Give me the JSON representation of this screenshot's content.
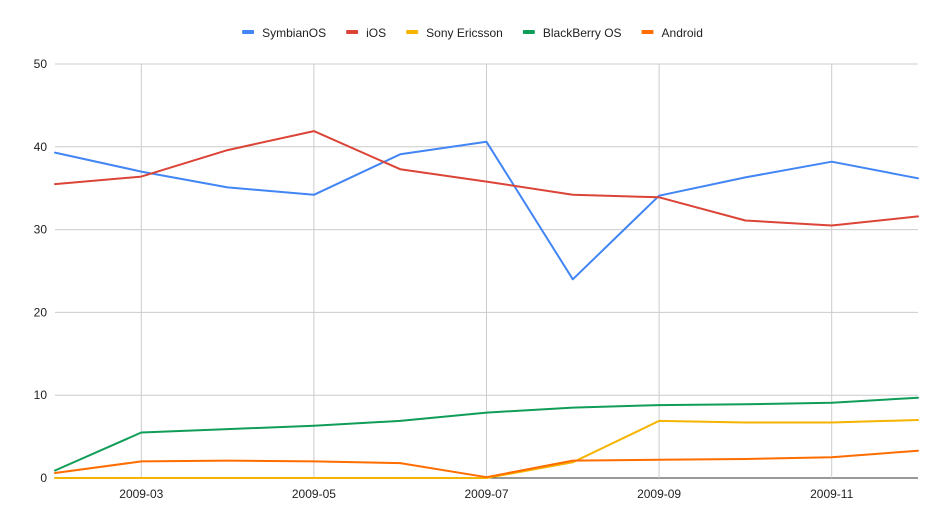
{
  "chart_data": {
    "type": "line",
    "x": [
      "2009-02",
      "2009-03",
      "2009-04",
      "2009-05",
      "2009-06",
      "2009-07",
      "2009-08",
      "2009-09",
      "2009-10",
      "2009-11",
      "2009-12"
    ],
    "x_tick_labels": [
      "2009-03",
      "2009-05",
      "2009-07",
      "2009-09",
      "2009-11"
    ],
    "ylim": [
      0,
      50
    ],
    "y_ticks": [
      0,
      10,
      20,
      30,
      40,
      50
    ],
    "grid": true,
    "legend_position": "top",
    "title": "",
    "xlabel": "",
    "ylabel": "",
    "series": [
      {
        "name": "SymbianOS",
        "color": "#4285f4",
        "values": [
          39.3,
          37.0,
          35.1,
          34.2,
          39.1,
          40.6,
          24.0,
          34.1,
          36.3,
          38.2,
          36.2
        ]
      },
      {
        "name": "iOS",
        "color": "#db4437",
        "values": [
          35.5,
          36.4,
          39.6,
          41.9,
          37.3,
          35.8,
          34.2,
          33.9,
          31.1,
          30.5,
          31.6
        ]
      },
      {
        "name": "Sony Ericsson",
        "color": "#f4b400",
        "values": [
          0,
          0,
          0,
          0,
          0,
          0,
          1.9,
          6.9,
          6.7,
          6.7,
          7.0
        ]
      },
      {
        "name": "BlackBerry OS",
        "color": "#0f9d58",
        "values": [
          0.9,
          5.5,
          5.9,
          6.3,
          6.9,
          7.9,
          8.5,
          8.8,
          8.9,
          9.1,
          9.7
        ]
      },
      {
        "name": "Android",
        "color": "#ff6d01",
        "values": [
          0.6,
          2.0,
          2.1,
          2.0,
          1.8,
          0.1,
          2.1,
          2.2,
          2.3,
          2.5,
          3.3
        ]
      }
    ]
  }
}
